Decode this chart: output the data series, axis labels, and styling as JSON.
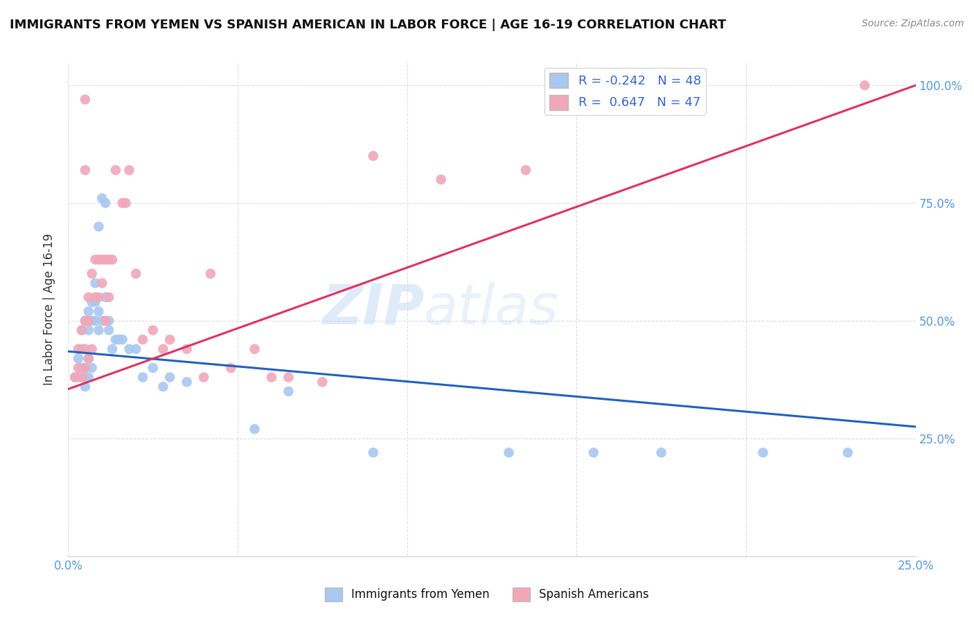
{
  "title": "IMMIGRANTS FROM YEMEN VS SPANISH AMERICAN IN LABOR FORCE | AGE 16-19 CORRELATION CHART",
  "source": "Source: ZipAtlas.com",
  "ylabel": "In Labor Force | Age 16-19",
  "xlim": [
    0.0,
    0.25
  ],
  "ylim": [
    0.0,
    1.05
  ],
  "legend_r_blue": "R = -0.242",
  "legend_n_blue": "N = 48",
  "legend_r_pink": "R =  0.647",
  "legend_n_pink": "N = 47",
  "blue_color": "#A8C8F0",
  "pink_color": "#F0A8B8",
  "trend_blue_color": "#2060C0",
  "trend_pink_color": "#E03060",
  "watermark_zip": "ZIP",
  "watermark_atlas": "atlas",
  "blue_scatter_x": [
    0.002,
    0.003,
    0.003,
    0.004,
    0.004,
    0.004,
    0.005,
    0.005,
    0.005,
    0.005,
    0.006,
    0.006,
    0.006,
    0.006,
    0.007,
    0.007,
    0.007,
    0.008,
    0.008,
    0.008,
    0.009,
    0.009,
    0.009,
    0.01,
    0.01,
    0.011,
    0.011,
    0.012,
    0.012,
    0.013,
    0.014,
    0.015,
    0.016,
    0.018,
    0.02,
    0.022,
    0.025,
    0.028,
    0.03,
    0.035,
    0.055,
    0.065,
    0.09,
    0.13,
    0.155,
    0.175,
    0.205,
    0.23
  ],
  "blue_scatter_y": [
    0.38,
    0.38,
    0.42,
    0.4,
    0.44,
    0.48,
    0.36,
    0.38,
    0.4,
    0.5,
    0.38,
    0.42,
    0.48,
    0.52,
    0.4,
    0.5,
    0.54,
    0.5,
    0.54,
    0.58,
    0.48,
    0.52,
    0.7,
    0.5,
    0.76,
    0.55,
    0.75,
    0.48,
    0.5,
    0.44,
    0.46,
    0.46,
    0.46,
    0.44,
    0.44,
    0.38,
    0.4,
    0.36,
    0.38,
    0.37,
    0.27,
    0.35,
    0.22,
    0.22,
    0.22,
    0.22,
    0.22,
    0.22
  ],
  "pink_scatter_x": [
    0.002,
    0.003,
    0.003,
    0.004,
    0.004,
    0.005,
    0.005,
    0.005,
    0.006,
    0.006,
    0.006,
    0.007,
    0.007,
    0.008,
    0.008,
    0.009,
    0.009,
    0.01,
    0.01,
    0.011,
    0.011,
    0.012,
    0.012,
    0.013,
    0.014,
    0.016,
    0.017,
    0.018,
    0.02,
    0.022,
    0.025,
    0.028,
    0.03,
    0.035,
    0.04,
    0.042,
    0.048,
    0.055,
    0.06,
    0.065,
    0.075,
    0.09,
    0.11,
    0.135,
    0.005,
    0.005,
    0.235
  ],
  "pink_scatter_y": [
    0.38,
    0.4,
    0.44,
    0.38,
    0.48,
    0.4,
    0.44,
    0.5,
    0.42,
    0.5,
    0.55,
    0.44,
    0.6,
    0.55,
    0.63,
    0.55,
    0.63,
    0.58,
    0.63,
    0.5,
    0.63,
    0.55,
    0.63,
    0.63,
    0.82,
    0.75,
    0.75,
    0.82,
    0.6,
    0.46,
    0.48,
    0.44,
    0.46,
    0.44,
    0.38,
    0.6,
    0.4,
    0.44,
    0.38,
    0.38,
    0.37,
    0.85,
    0.8,
    0.82,
    0.82,
    0.97,
    1.0
  ],
  "blue_trend_x": [
    0.0,
    0.25
  ],
  "blue_trend_y": [
    0.435,
    0.275
  ],
  "pink_trend_x": [
    0.0,
    0.25
  ],
  "pink_trend_y": [
    0.355,
    1.0
  ],
  "background_color": "#FFFFFF",
  "grid_color": "#DDDDDD",
  "title_color": "#111111",
  "axis_color": "#5599DD",
  "label_color": "#333333"
}
